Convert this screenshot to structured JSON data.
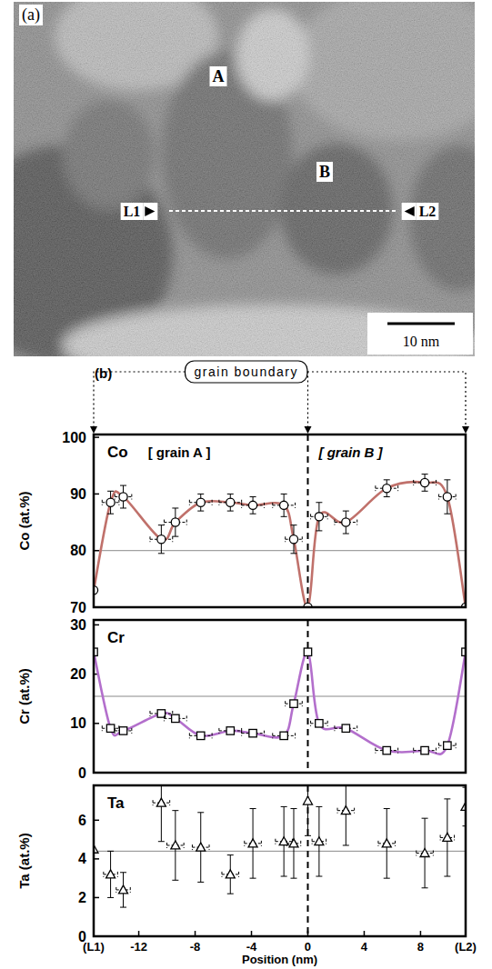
{
  "micrograph": {
    "panel_label": "(a)",
    "grain_labels": [
      "A",
      "B"
    ],
    "line_labels": [
      "L1",
      "L2"
    ],
    "scale_bar": "10 nm"
  },
  "panel_label_b": "(b)",
  "grain_boundary": {
    "label": "grain boundary",
    "x": [
      -15.2,
      0,
      11.2
    ]
  },
  "chart_data": [
    {
      "type": "scatter",
      "title": "Co",
      "y_label": "Co (at.%)",
      "annotations": [
        "[ grain A ]",
        "[ grain B ]"
      ],
      "xlim": [
        -15.2,
        11.2
      ],
      "ylim": [
        70,
        100.5
      ],
      "yticks": [
        70,
        80,
        90,
        100
      ],
      "tick_labels": "y",
      "reference": 80,
      "marker": "circle",
      "line_style": "smooth",
      "color": "#c0716b",
      "x": [
        -15.2,
        -14.0,
        -13.1,
        -10.4,
        -9.4,
        -7.6,
        -5.5,
        -3.9,
        -1.7,
        -1.0,
        0,
        0.8,
        2.7,
        5.6,
        8.3,
        9.9,
        11.2
      ],
      "values": [
        73,
        88.5,
        89.5,
        82,
        85,
        88.5,
        88.5,
        88,
        88,
        82,
        70,
        86,
        85,
        91,
        92,
        89.5,
        70
      ],
      "yerr": [
        null,
        2,
        2,
        2.5,
        2.5,
        1.5,
        1.5,
        1.5,
        2,
        2.5,
        null,
        2.5,
        2,
        1.5,
        1.5,
        3,
        null
      ],
      "xerr": [
        null,
        0.6,
        0.6,
        0.8,
        0.8,
        0.8,
        0.8,
        0.8,
        0.8,
        0.6,
        null,
        0.6,
        0.8,
        0.8,
        0.8,
        0.6,
        null
      ]
    },
    {
      "type": "scatter",
      "title": "Cr",
      "y_label": "Cr (at.%)",
      "xlim": [
        -15.2,
        11.2
      ],
      "ylim": [
        0,
        31
      ],
      "yticks": [
        0,
        10,
        20,
        30
      ],
      "tick_labels": "y",
      "reference": 15.5,
      "marker": "square",
      "line_style": "smooth",
      "color": "#b36fcc",
      "x": [
        -15.2,
        -14.0,
        -13.1,
        -10.4,
        -9.4,
        -7.6,
        -5.5,
        -3.9,
        -1.7,
        -1.0,
        0,
        0.8,
        2.7,
        5.6,
        8.3,
        9.9,
        11.2
      ],
      "values": [
        24.5,
        9,
        8.5,
        12,
        11,
        7.5,
        8.5,
        8,
        7.5,
        14,
        24.5,
        10,
        9,
        4.5,
        4.5,
        5.5,
        24.5
      ],
      "xerr": [
        null,
        0.6,
        0.6,
        0.8,
        0.8,
        0.8,
        0.8,
        0.8,
        0.8,
        0.6,
        null,
        0.6,
        0.8,
        0.8,
        0.8,
        0.6,
        null
      ]
    },
    {
      "type": "scatter",
      "title": "Ta",
      "y_label": "Ta (at.%)",
      "x_label": "Position (nm)",
      "xlim": [
        -15.2,
        11.2
      ],
      "xticks": [
        {
          "value": -15.2,
          "label": "(L1)"
        },
        -12,
        -8,
        -4,
        0,
        4,
        8,
        {
          "value": 11.2,
          "label": "(L2)"
        }
      ],
      "ylim": [
        0,
        7.8
      ],
      "yticks": [
        0,
        2,
        4,
        6
      ],
      "reference": 4.4,
      "marker": "triangle",
      "line_style": "none",
      "x": [
        -15.2,
        -14.0,
        -13.1,
        -10.4,
        -9.4,
        -7.6,
        -5.5,
        -3.9,
        -1.7,
        -1.0,
        0,
        0.8,
        2.7,
        5.6,
        8.3,
        9.9,
        11.2
      ],
      "values": [
        4.5,
        3.2,
        2.4,
        6.9,
        4.7,
        4.6,
        3.2,
        4.8,
        4.9,
        4.8,
        7.0,
        4.9,
        6.5,
        4.8,
        4.3,
        5.1,
        6.7
      ],
      "yerr": [
        null,
        1.2,
        0.9,
        2,
        1.8,
        1.8,
        1.0,
        1.8,
        1.8,
        1.8,
        1.8,
        1.8,
        1.8,
        1.8,
        1.8,
        2,
        1
      ],
      "xerr": [
        null,
        0.5,
        0.5,
        0.6,
        0.6,
        0.6,
        0.6,
        0.6,
        0.6,
        0.5,
        null,
        0.5,
        0.6,
        0.6,
        0.6,
        0.5,
        null
      ]
    }
  ]
}
